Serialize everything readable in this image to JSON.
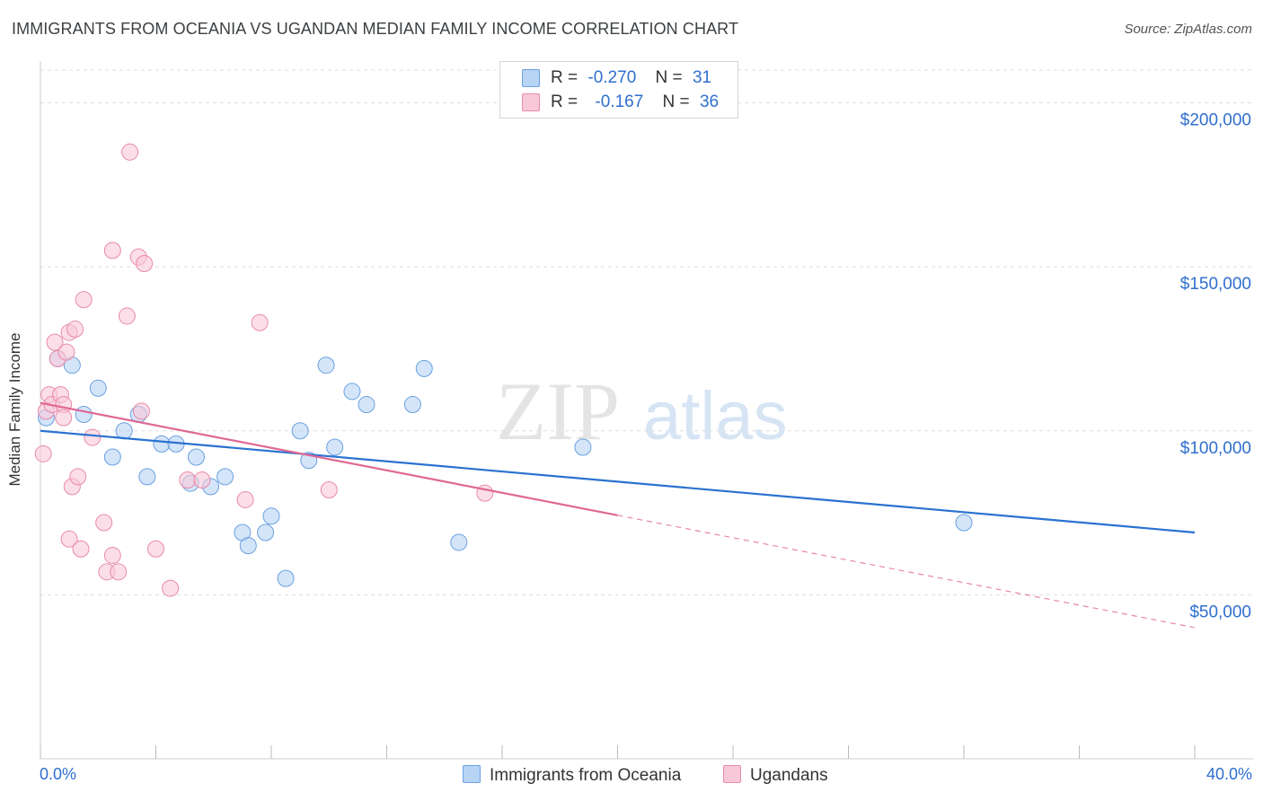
{
  "title": "IMMIGRANTS FROM OCEANIA VS UGANDAN MEDIAN FAMILY INCOME CORRELATION CHART",
  "source": "Source: ZipAtlas.com",
  "watermark": {
    "zip": "ZIP",
    "atlas": "atlas"
  },
  "legend": {
    "rows": [
      {
        "r_label": "R =",
        "r_value": "-0.270",
        "n_label": "N =",
        "n_value": "31"
      },
      {
        "r_label": "R =",
        "r_value": "-0.167",
        "n_label": "N =",
        "n_value": "36"
      }
    ]
  },
  "colors": {
    "blue_fill": "#b8d4f5",
    "blue_stroke": "#6aa0e0",
    "blue_line": "#2a72d0",
    "pink_fill": "#f8c8d8",
    "pink_stroke": "#e88aaa",
    "pink_line": "#e06893",
    "axis_label": "#2f6fcf",
    "grid": "#dddddd"
  },
  "chart_data": {
    "type": "scatter",
    "ylabel": "Median Family Income",
    "x_tick_labels": {
      "min": "0.0%",
      "max": "40.0%"
    },
    "xlim": [
      0,
      40
    ],
    "ylim": [
      0,
      210000
    ],
    "y_ticks": [
      {
        "value": 50000,
        "label": "$50,000"
      },
      {
        "value": 100000,
        "label": "$100,000"
      },
      {
        "value": 150000,
        "label": "$150,000"
      },
      {
        "value": 200000,
        "label": "$200,000"
      }
    ],
    "grid": true,
    "legend_placement": "top-center",
    "series": [
      {
        "name": "Immigrants from Oceania",
        "color": "blue",
        "points": [
          [
            0.2,
            104000
          ],
          [
            0.6,
            122000
          ],
          [
            1.1,
            120000
          ],
          [
            1.5,
            105000
          ],
          [
            2.0,
            113000
          ],
          [
            2.5,
            92000
          ],
          [
            2.9,
            100000
          ],
          [
            3.4,
            105000
          ],
          [
            3.7,
            86000
          ],
          [
            4.2,
            96000
          ],
          [
            4.7,
            96000
          ],
          [
            5.2,
            84000
          ],
          [
            5.4,
            92000
          ],
          [
            5.9,
            83000
          ],
          [
            6.4,
            86000
          ],
          [
            7.0,
            69000
          ],
          [
            7.2,
            65000
          ],
          [
            7.8,
            69000
          ],
          [
            8.0,
            74000
          ],
          [
            8.5,
            55000
          ],
          [
            9.0,
            100000
          ],
          [
            9.3,
            91000
          ],
          [
            9.9,
            120000
          ],
          [
            10.2,
            95000
          ],
          [
            10.8,
            112000
          ],
          [
            11.3,
            108000
          ],
          [
            12.9,
            108000
          ],
          [
            13.3,
            119000
          ],
          [
            14.5,
            66000
          ],
          [
            18.8,
            95000
          ],
          [
            32.0,
            72000
          ]
        ],
        "trend": {
          "x": [
            0,
            40
          ],
          "y": [
            100000,
            69000
          ],
          "dashed_from": null
        }
      },
      {
        "name": "Ugandans",
        "color": "pink",
        "points": [
          [
            0.1,
            93000
          ],
          [
            0.2,
            106000
          ],
          [
            0.3,
            111000
          ],
          [
            0.4,
            108000
          ],
          [
            0.5,
            127000
          ],
          [
            0.6,
            122000
          ],
          [
            0.7,
            111000
          ],
          [
            0.8,
            108000
          ],
          [
            0.8,
            104000
          ],
          [
            0.9,
            124000
          ],
          [
            1.0,
            67000
          ],
          [
            1.0,
            130000
          ],
          [
            1.1,
            83000
          ],
          [
            1.2,
            131000
          ],
          [
            1.3,
            86000
          ],
          [
            1.4,
            64000
          ],
          [
            1.5,
            140000
          ],
          [
            1.8,
            98000
          ],
          [
            2.2,
            72000
          ],
          [
            2.3,
            57000
          ],
          [
            2.5,
            62000
          ],
          [
            2.5,
            155000
          ],
          [
            2.7,
            57000
          ],
          [
            3.0,
            135000
          ],
          [
            3.1,
            185000
          ],
          [
            3.4,
            153000
          ],
          [
            3.5,
            106000
          ],
          [
            3.6,
            151000
          ],
          [
            4.0,
            64000
          ],
          [
            4.5,
            52000
          ],
          [
            5.1,
            85000
          ],
          [
            5.6,
            85000
          ],
          [
            7.1,
            79000
          ],
          [
            7.6,
            133000
          ],
          [
            10.0,
            82000
          ],
          [
            15.4,
            81000
          ]
        ],
        "trend": {
          "x": [
            0,
            40
          ],
          "y": [
            108500,
            40000
          ],
          "dashed_from": 20
        }
      }
    ]
  }
}
